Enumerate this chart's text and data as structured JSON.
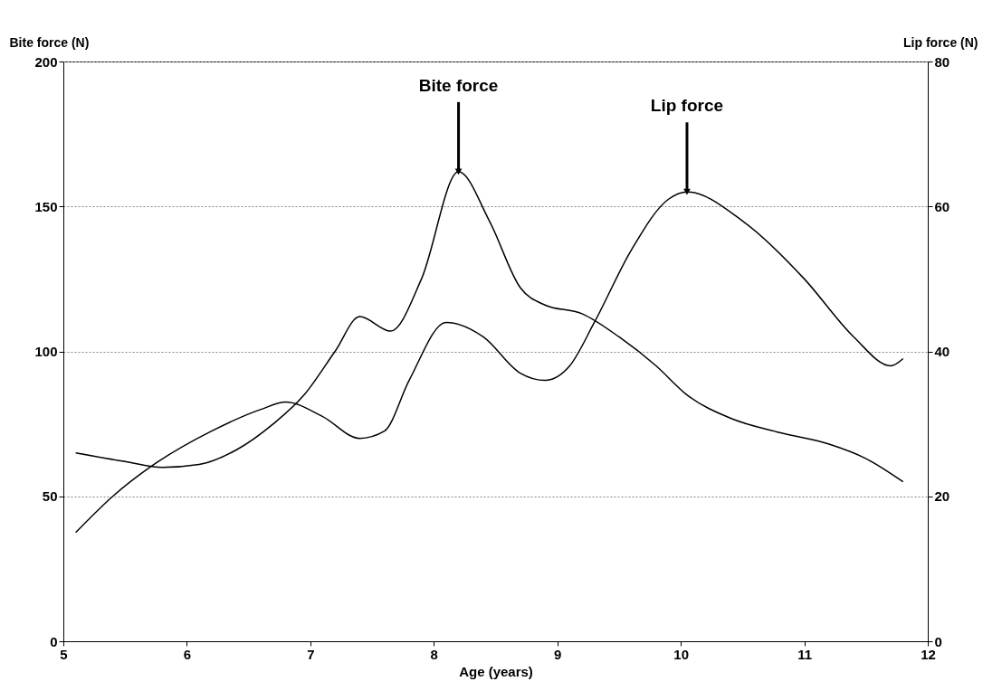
{
  "chart_data": {
    "type": "line",
    "xlabel": "Age (years)",
    "ylabel": "Bite force (N)",
    "y2label": "Lip force (N)",
    "xlim": [
      5,
      12
    ],
    "xticks": [
      5,
      6,
      7,
      8,
      9,
      10,
      11,
      12
    ],
    "ylim": [
      0,
      200
    ],
    "yticks": [
      0,
      50,
      100,
      150,
      200
    ],
    "y2lim": [
      0,
      80
    ],
    "y2ticks": [
      0,
      20,
      40,
      60,
      80
    ],
    "grid": "y",
    "line_style": "solid",
    "series": [
      {
        "color": "#000000",
        "x": [
          5.1,
          5.5,
          5.8,
          6.1,
          6.4,
          6.7,
          6.95,
          7.2,
          7.4,
          7.65,
          7.9,
          8.2,
          8.45,
          8.7,
          8.9,
          9.2,
          9.5,
          9.8,
          10.05,
          10.4,
          10.8,
          11.2,
          11.5,
          11.8
        ],
        "values": [
          65,
          62,
          60,
          61,
          66,
          75,
          85,
          100,
          112,
          107,
          125,
          162,
          145,
          122,
          116,
          113,
          105,
          95,
          85,
          77,
          72,
          68,
          63,
          55
        ]
      },
      {
        "color": "#000000",
        "axis": "y2",
        "x": [
          5.1,
          5.4,
          5.7,
          6.2,
          6.6,
          6.8,
          7.1,
          7.4,
          7.6,
          7.8,
          8.1,
          8.4,
          8.7,
          8.9,
          9.1,
          9.3,
          9.6,
          9.9,
          10.05,
          10.5,
          11,
          11.4,
          11.7,
          11.8
        ],
        "values": [
          15,
          20,
          24,
          29,
          32,
          33,
          31,
          28,
          29,
          36,
          44,
          42,
          37,
          36,
          38,
          44,
          54,
          61,
          62,
          58,
          50,
          42,
          38,
          39
        ]
      }
    ],
    "annotations": [
      {
        "text": "Bite force",
        "x": 8.2,
        "y": 162
      },
      {
        "text": "Lip force",
        "x": 10.05,
        "y": 155
      }
    ]
  }
}
